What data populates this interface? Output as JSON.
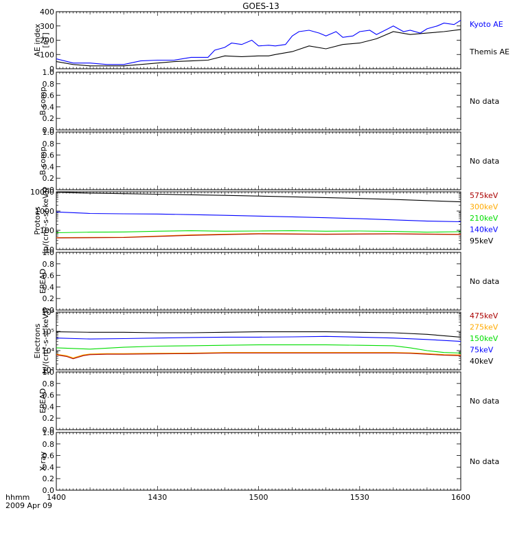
{
  "title": "GOES-13",
  "footer": {
    "hhmm": "hhmm",
    "date": "2009 Apr 09"
  },
  "x_ticks": [
    "1400",
    "1430",
    "1500",
    "1530",
    "1600"
  ],
  "x_range": [
    0,
    120
  ],
  "no_data_label": "No data",
  "chart_data": [
    {
      "id": "ae",
      "type": "line",
      "ylabel_lines": [
        "AE index",
        "[nT]"
      ],
      "ylim": [
        0,
        400
      ],
      "yticks": [
        "0",
        "100",
        "200",
        "300",
        "400"
      ],
      "series": [
        {
          "name": "Kyoto AE",
          "color": "#0000ff",
          "x": [
            0,
            5,
            10,
            15,
            20,
            25,
            30,
            35,
            40,
            42,
            45,
            47,
            50,
            52,
            55,
            58,
            60,
            63,
            65,
            68,
            70,
            72,
            75,
            78,
            80,
            83,
            85,
            88,
            90,
            93,
            95,
            98,
            100,
            103,
            105,
            108,
            110,
            113,
            115,
            118,
            120
          ],
          "y": [
            70,
            40,
            40,
            30,
            30,
            55,
            60,
            60,
            80,
            80,
            80,
            130,
            150,
            180,
            170,
            200,
            160,
            165,
            160,
            170,
            230,
            260,
            270,
            250,
            230,
            260,
            220,
            230,
            260,
            270,
            240,
            275,
            300,
            260,
            270,
            250,
            280,
            300,
            320,
            310,
            340
          ]
        },
        {
          "name": "Themis AE",
          "color": "#000000",
          "x": [
            0,
            5,
            10,
            15,
            20,
            25,
            30,
            35,
            40,
            45,
            50,
            55,
            60,
            63,
            65,
            70,
            75,
            80,
            85,
            90,
            95,
            100,
            105,
            110,
            115,
            120
          ],
          "y": [
            50,
            30,
            20,
            20,
            20,
            30,
            40,
            50,
            55,
            60,
            90,
            85,
            90,
            90,
            100,
            120,
            160,
            140,
            170,
            180,
            210,
            260,
            240,
            250,
            260,
            275
          ]
        }
      ]
    },
    {
      "id": "b1",
      "type": "line",
      "ylabel_lines": [
        "B comp"
      ],
      "ylim": [
        0,
        1
      ],
      "yticks": [
        "0.0",
        "0.2",
        "0.4",
        "0.6",
        "0.8",
        "1.0"
      ],
      "no_data": true
    },
    {
      "id": "b2",
      "type": "line",
      "ylabel_lines": [
        "B comp"
      ],
      "ylim": [
        0,
        1
      ],
      "yticks": [
        "0.0",
        "0.2",
        "0.4",
        "0.6",
        "0.8",
        "1.0"
      ],
      "no_data": true
    },
    {
      "id": "protons",
      "type": "line",
      "log": true,
      "ylabel_lines": [
        "Protons",
        "[p/(cm²-s-sr-keV)]"
      ],
      "ylim": [
        10,
        10000
      ],
      "yticks": [
        "10",
        "100",
        "1000",
        "10000"
      ],
      "ytick_values": [
        10,
        100,
        1000,
        10000
      ],
      "series": [
        {
          "name": "575keV",
          "color": "#aa0000",
          "x": [
            0,
            20,
            40,
            60,
            80,
            100,
            120
          ],
          "y": [
            40,
            42,
            55,
            65,
            62,
            65,
            60
          ]
        },
        {
          "name": "300keV",
          "color": "#ffaa00",
          "x": [
            0,
            20,
            40,
            60,
            80,
            100,
            120
          ],
          "y": [
            42,
            44,
            58,
            68,
            64,
            67,
            62
          ]
        },
        {
          "name": "210keV",
          "color": "#00dd00",
          "x": [
            0,
            10,
            20,
            30,
            40,
            50,
            60,
            70,
            80,
            90,
            100,
            110,
            120
          ],
          "y": [
            75,
            80,
            82,
            90,
            95,
            90,
            92,
            95,
            90,
            92,
            88,
            80,
            85
          ]
        },
        {
          "name": "140keV",
          "color": "#0000ff",
          "x": [
            0,
            10,
            20,
            30,
            40,
            50,
            60,
            70,
            80,
            90,
            100,
            110,
            120
          ],
          "y": [
            900,
            750,
            720,
            700,
            650,
            600,
            550,
            500,
            450,
            400,
            350,
            300,
            280
          ]
        },
        {
          "name": "95keV",
          "color": "#000000",
          "x": [
            0,
            10,
            20,
            30,
            40,
            50,
            60,
            70,
            80,
            90,
            100,
            110,
            120
          ],
          "y": [
            9500,
            8500,
            8000,
            7500,
            7000,
            6500,
            6000,
            5500,
            5000,
            4500,
            4000,
            3500,
            3000
          ]
        }
      ]
    },
    {
      "id": "epead1",
      "type": "line",
      "ylabel_lines": [
        "EPEAD"
      ],
      "ylim": [
        0,
        1
      ],
      "yticks": [
        "0.0",
        "0.2",
        "0.4",
        "0.6",
        "0.8",
        "1.0"
      ],
      "no_data": true
    },
    {
      "id": "electrons",
      "type": "line",
      "log": true,
      "ylabel_lines": [
        "Electrons",
        "[e/(cm²-s-sr-keV)]"
      ],
      "ylim": [
        1000,
        1000000
      ],
      "yticks": [
        "10³",
        "10⁴",
        "10⁵",
        "10⁶"
      ],
      "ytick_values": [
        1000,
        10000,
        100000,
        1000000
      ],
      "series": [
        {
          "name": "475keV",
          "color": "#aa0000",
          "x": [
            0,
            3,
            5,
            8,
            10,
            15,
            20,
            30,
            40,
            50,
            60,
            70,
            80,
            90,
            100,
            105,
            110,
            115,
            120
          ],
          "y": [
            6000,
            5000,
            3800,
            5500,
            6200,
            6500,
            6500,
            6800,
            7000,
            7500,
            7500,
            7500,
            7500,
            7500,
            7500,
            7200,
            6500,
            5800,
            5500
          ]
        },
        {
          "name": "275keV",
          "color": "#ffaa00",
          "x": [
            0,
            3,
            5,
            8,
            10,
            15,
            20,
            30,
            40,
            50,
            60,
            70,
            80,
            90,
            100,
            105,
            110,
            115,
            120
          ],
          "y": [
            6500,
            5500,
            4200,
            6000,
            6700,
            7000,
            7000,
            7300,
            7500,
            8000,
            8000,
            8000,
            8000,
            8000,
            8000,
            7700,
            7000,
            6200,
            6000
          ]
        },
        {
          "name": "150keV",
          "color": "#00dd00",
          "x": [
            0,
            10,
            20,
            30,
            40,
            50,
            60,
            70,
            80,
            90,
            100,
            105,
            110,
            115,
            120
          ],
          "y": [
            14000,
            12000,
            15000,
            17000,
            18000,
            19000,
            20000,
            20000,
            20000,
            19000,
            18000,
            14000,
            10000,
            8000,
            7500
          ]
        },
        {
          "name": "75keV",
          "color": "#0000ff",
          "x": [
            0,
            10,
            20,
            30,
            40,
            50,
            60,
            70,
            80,
            90,
            100,
            110,
            120
          ],
          "y": [
            45000,
            40000,
            42000,
            45000,
            48000,
            50000,
            50000,
            52000,
            55000,
            50000,
            45000,
            38000,
            30000
          ]
        },
        {
          "name": "40keV",
          "color": "#000000",
          "x": [
            0,
            10,
            20,
            30,
            40,
            50,
            60,
            70,
            80,
            90,
            100,
            110,
            120
          ],
          "y": [
            95000,
            90000,
            90000,
            85000,
            85000,
            90000,
            95000,
            95000,
            95000,
            90000,
            85000,
            70000,
            50000
          ]
        }
      ]
    },
    {
      "id": "epead2",
      "type": "line",
      "ylabel_lines": [
        "EPEAD"
      ],
      "ylim": [
        0,
        1
      ],
      "yticks": [
        "0.0",
        "0.2",
        "0.4",
        "0.6",
        "0.8",
        "1.0"
      ],
      "no_data": true
    },
    {
      "id": "xray",
      "type": "line",
      "ylabel_lines": [
        "X-ray"
      ],
      "ylim": [
        0,
        1
      ],
      "yticks": [
        "0.0",
        "0.2",
        "0.4",
        "0.6",
        "0.8",
        "1.0"
      ],
      "no_data": true
    }
  ]
}
